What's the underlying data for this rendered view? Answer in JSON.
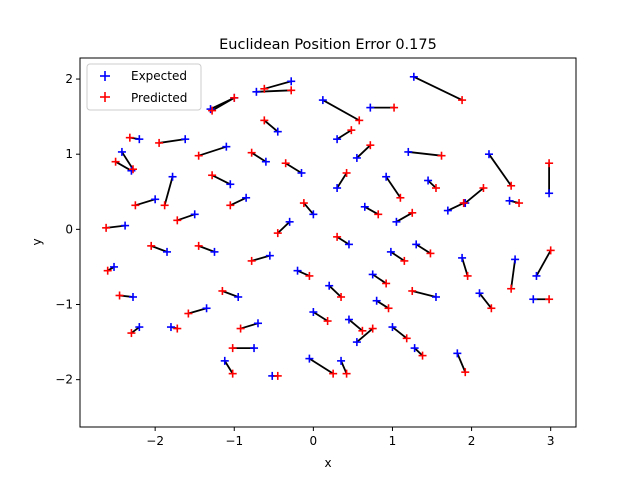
{
  "chart_data": {
    "type": "scatter",
    "title": "Euclidean Position Error 0.175",
    "xlabel": "x",
    "ylabel": "y",
    "xlim": [
      -2.95,
      3.32
    ],
    "ylim": [
      -2.63,
      2.28
    ],
    "xticks": [
      -2,
      -1,
      0,
      1,
      2,
      3
    ],
    "yticks": [
      -2,
      -1,
      0,
      1,
      2
    ],
    "xtick_labels": [
      "−2",
      "−1",
      "0",
      "1",
      "2",
      "3"
    ],
    "ytick_labels": [
      "−2",
      "−1",
      "0",
      "1",
      "2"
    ],
    "legend_position": "top-left",
    "colors": {
      "expected": "#0000ff",
      "predicted": "#ff0000",
      "error_line": "#000000"
    },
    "series": [
      {
        "name": "Expected",
        "marker": "+",
        "points": [
          [
            1.27,
            2.03
          ],
          [
            -0.28,
            1.97
          ],
          [
            -0.72,
            1.83
          ],
          [
            0.12,
            1.72
          ],
          [
            -1.0,
            1.75
          ],
          [
            -1.3,
            1.6
          ],
          [
            0.72,
            1.62
          ],
          [
            -2.2,
            1.2
          ],
          [
            -1.62,
            1.2
          ],
          [
            -1.1,
            1.1
          ],
          [
            1.2,
            1.03
          ],
          [
            -2.42,
            1.03
          ],
          [
            -2.3,
            0.78
          ],
          [
            -1.78,
            0.7
          ],
          [
            -2.0,
            0.4
          ],
          [
            2.22,
            1.0
          ],
          [
            2.48,
            0.38
          ],
          [
            2.98,
            0.48
          ],
          [
            -2.38,
            0.05
          ],
          [
            -2.52,
            -0.5
          ],
          [
            -2.28,
            -0.9
          ],
          [
            -2.2,
            -1.3
          ],
          [
            -1.8,
            -1.3
          ],
          [
            -1.12,
            -1.75
          ],
          [
            -0.75,
            -1.58
          ],
          [
            -0.52,
            -1.95
          ],
          [
            -0.05,
            -1.72
          ],
          [
            0.35,
            -1.75
          ],
          [
            0.55,
            -1.5
          ],
          [
            1.28,
            -1.58
          ],
          [
            1.82,
            -1.65
          ],
          [
            2.55,
            -0.4
          ],
          [
            2.82,
            -0.62
          ],
          [
            2.78,
            -0.93
          ],
          [
            1.55,
            -0.9
          ],
          [
            2.1,
            -0.85
          ],
          [
            1.88,
            -0.38
          ],
          [
            1.45,
            0.65
          ],
          [
            0.92,
            0.7
          ],
          [
            0.3,
            0.55
          ],
          [
            0.0,
            0.2
          ],
          [
            -0.3,
            0.1
          ],
          [
            0.45,
            -0.2
          ],
          [
            -0.55,
            -0.35
          ],
          [
            0.65,
            0.3
          ],
          [
            -0.85,
            0.42
          ],
          [
            0.98,
            -0.3
          ],
          [
            -0.2,
            -0.55
          ],
          [
            0.2,
            -0.75
          ],
          [
            -1.25,
            -0.3
          ],
          [
            1.3,
            -0.2
          ],
          [
            -0.95,
            -0.9
          ],
          [
            0.8,
            -0.95
          ],
          [
            -1.5,
            0.2
          ],
          [
            1.7,
            0.25
          ],
          [
            -0.6,
            0.9
          ],
          [
            0.55,
            0.95
          ],
          [
            1.92,
            0.35
          ],
          [
            -1.85,
            -0.3
          ],
          [
            0.0,
            -1.1
          ],
          [
            -0.45,
            1.3
          ],
          [
            0.3,
            1.2
          ],
          [
            -1.05,
            0.6
          ],
          [
            1.05,
            0.1
          ],
          [
            -0.15,
            0.75
          ],
          [
            0.75,
            -0.6
          ],
          [
            -1.35,
            -1.05
          ],
          [
            1.0,
            -1.3
          ],
          [
            -0.7,
            -1.25
          ],
          [
            0.45,
            -1.2
          ]
        ]
      },
      {
        "name": "Predicted",
        "marker": "+",
        "points": [
          [
            1.88,
            1.72
          ],
          [
            -0.62,
            1.87
          ],
          [
            -0.28,
            1.85
          ],
          [
            0.58,
            1.45
          ],
          [
            -1.28,
            1.58
          ],
          [
            -1.0,
            1.75
          ],
          [
            1.02,
            1.62
          ],
          [
            -2.32,
            1.22
          ],
          [
            -1.95,
            1.15
          ],
          [
            -1.45,
            0.98
          ],
          [
            1.62,
            0.98
          ],
          [
            -2.28,
            0.8
          ],
          [
            -2.5,
            0.9
          ],
          [
            -1.88,
            0.32
          ],
          [
            -2.25,
            0.32
          ],
          [
            2.5,
            0.58
          ],
          [
            2.6,
            0.35
          ],
          [
            2.98,
            0.88
          ],
          [
            -2.62,
            0.02
          ],
          [
            -2.6,
            -0.55
          ],
          [
            -2.45,
            -0.88
          ],
          [
            -2.3,
            -1.38
          ],
          [
            -1.72,
            -1.32
          ],
          [
            -1.02,
            -1.92
          ],
          [
            -1.02,
            -1.58
          ],
          [
            -0.45,
            -1.95
          ],
          [
            0.25,
            -1.92
          ],
          [
            0.42,
            -1.92
          ],
          [
            0.75,
            -1.32
          ],
          [
            1.38,
            -1.68
          ],
          [
            1.92,
            -1.9
          ],
          [
            2.5,
            -0.79
          ],
          [
            3.0,
            -0.28
          ],
          [
            2.98,
            -0.93
          ],
          [
            1.25,
            -0.82
          ],
          [
            2.25,
            -1.05
          ],
          [
            1.95,
            -0.62
          ],
          [
            1.55,
            0.55
          ],
          [
            1.1,
            0.42
          ],
          [
            0.42,
            0.75
          ],
          [
            -0.12,
            0.35
          ],
          [
            -0.45,
            -0.05
          ],
          [
            0.3,
            -0.1
          ],
          [
            -0.78,
            -0.42
          ],
          [
            0.82,
            0.2
          ],
          [
            -1.05,
            0.32
          ],
          [
            1.15,
            -0.42
          ],
          [
            -0.05,
            -0.62
          ],
          [
            0.35,
            -0.9
          ],
          [
            -1.45,
            -0.22
          ],
          [
            1.48,
            -0.32
          ],
          [
            -1.15,
            -0.82
          ],
          [
            0.95,
            -1.05
          ],
          [
            -1.72,
            0.12
          ],
          [
            1.9,
            0.35
          ],
          [
            -0.78,
            1.02
          ],
          [
            0.72,
            1.12
          ],
          [
            2.15,
            0.55
          ],
          [
            -2.05,
            -0.22
          ],
          [
            0.18,
            -1.22
          ],
          [
            -0.62,
            1.45
          ],
          [
            0.48,
            1.32
          ],
          [
            -1.28,
            0.72
          ],
          [
            1.25,
            0.22
          ],
          [
            -0.35,
            0.88
          ],
          [
            0.92,
            -0.72
          ],
          [
            -1.58,
            -1.12
          ],
          [
            1.18,
            -1.45
          ],
          [
            -0.92,
            -1.32
          ],
          [
            0.62,
            -1.35
          ]
        ]
      }
    ]
  }
}
